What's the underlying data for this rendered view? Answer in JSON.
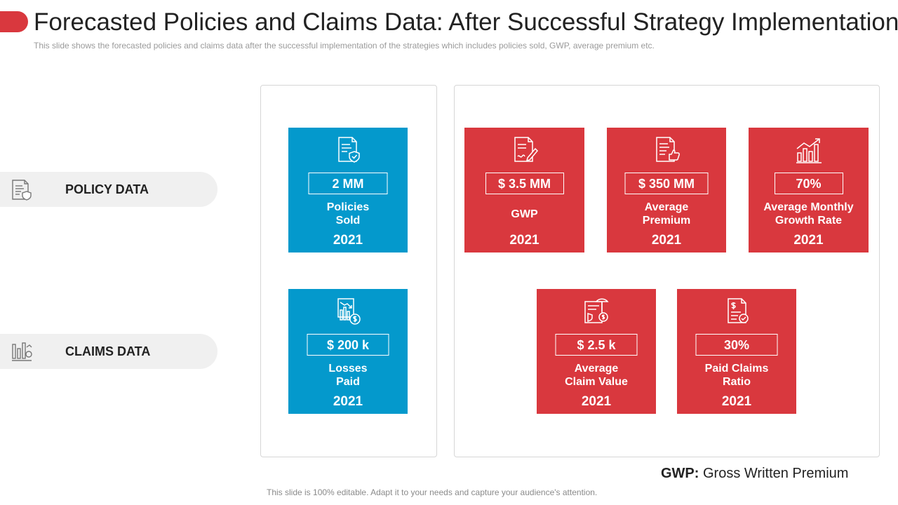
{
  "slide": {
    "title": "Forecasted Policies and Claims Data: After Successful Strategy Implementation",
    "subtitle": "This slide shows the forecasted  policies and claims data after the successful implementation  of the strategies which includes policies sold, GWP, average  premium etc.",
    "footer": "This slide is 100% editable. Adapt it to your needs and capture your audience's attention.",
    "accent_color": "#d9383e",
    "blue_color": "#0499cc"
  },
  "rows": {
    "policy": {
      "label": "POLICY DATA",
      "icon": "policy-document-icon"
    },
    "claims": {
      "label": "CLAIMS DATA",
      "icon": "claims-chart-icon"
    }
  },
  "cards": {
    "policies_sold": {
      "value": "2 MM",
      "label": "Policies\nSold",
      "year": "2021",
      "icon": "shield-document-icon"
    },
    "gwp": {
      "value": "$ 3.5 MM",
      "label": "GWP",
      "year": "2021",
      "icon": "document-pen-icon"
    },
    "average_premium": {
      "value": "$ 350 MM",
      "label": "Average\nPremium",
      "year": "2021",
      "icon": "document-thumbs-up-icon"
    },
    "growth_rate": {
      "value": "70%",
      "label": "Average Monthly\nGrowth Rate",
      "year": "2021",
      "icon": "growth-bar-chart-icon"
    },
    "losses_paid": {
      "value": "$ 200 k",
      "label": "Losses\nPaid",
      "year": "2021",
      "icon": "loss-chart-coin-icon"
    },
    "average_claim_value": {
      "value": "$ 2.5 k",
      "label": "Average\nClaim Value",
      "year": "2021",
      "icon": "insurance-claim-icon"
    },
    "paid_claims_ratio": {
      "value": "30%",
      "label": "Paid Claims\nRatio",
      "year": "2021",
      "icon": "dollar-document-check-icon"
    }
  },
  "footnote": {
    "term": "GWP:",
    "definition": "Gross Written Premium"
  }
}
